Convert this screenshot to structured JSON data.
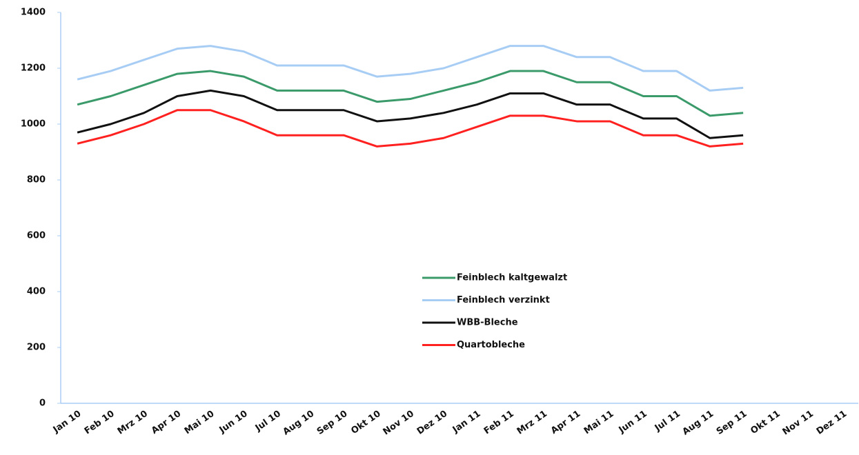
{
  "chart_data": {
    "type": "line",
    "categories": [
      "Jan 10",
      "Feb 10",
      "Mrz 10",
      "Apr 10",
      "Mai 10",
      "Jun 10",
      "Jul 10",
      "Aug 10",
      "Sep 10",
      "Okt 10",
      "Nov 10",
      "Dez 10",
      "Jan 11",
      "Feb 11",
      "Mrz 11",
      "Apr 11",
      "Mai 11",
      "Jun 11",
      "Jul 11",
      "Aug 11",
      "Sep 11",
      "Okt 11",
      "Nov 11",
      "Dez 11"
    ],
    "series": [
      {
        "name": "Feinblech kaltgewalzt",
        "color": "#3a9a6a",
        "values": [
          1070,
          1100,
          1140,
          1180,
          1190,
          1170,
          1120,
          1120,
          1120,
          1080,
          1090,
          1120,
          1150,
          1190,
          1190,
          1150,
          1150,
          1100,
          1100,
          1030,
          1040,
          null,
          null,
          null
        ]
      },
      {
        "name": "Feinblech verzinkt",
        "color": "#a8cdf5",
        "values": [
          1160,
          1190,
          1230,
          1270,
          1280,
          1260,
          1210,
          1210,
          1210,
          1170,
          1180,
          1200,
          1240,
          1280,
          1280,
          1240,
          1240,
          1190,
          1190,
          1120,
          1130,
          null,
          null,
          null
        ]
      },
      {
        "name": "WBB-Bleche",
        "color": "#111111",
        "values": [
          970,
          1000,
          1040,
          1100,
          1120,
          1100,
          1050,
          1050,
          1050,
          1010,
          1020,
          1040,
          1070,
          1110,
          1110,
          1070,
          1070,
          1020,
          1020,
          950,
          960,
          null,
          null,
          null
        ]
      },
      {
        "name": "Quartobleche",
        "color": "#ff2020",
        "values": [
          930,
          960,
          1000,
          1050,
          1050,
          1010,
          960,
          960,
          960,
          920,
          930,
          950,
          990,
          1030,
          1030,
          1010,
          1010,
          960,
          960,
          920,
          930,
          null,
          null,
          null
        ]
      }
    ],
    "ylim": [
      0,
      1400
    ],
    "yticks": [
      0,
      200,
      400,
      600,
      800,
      1000,
      1200,
      1400
    ],
    "grid": false
  }
}
